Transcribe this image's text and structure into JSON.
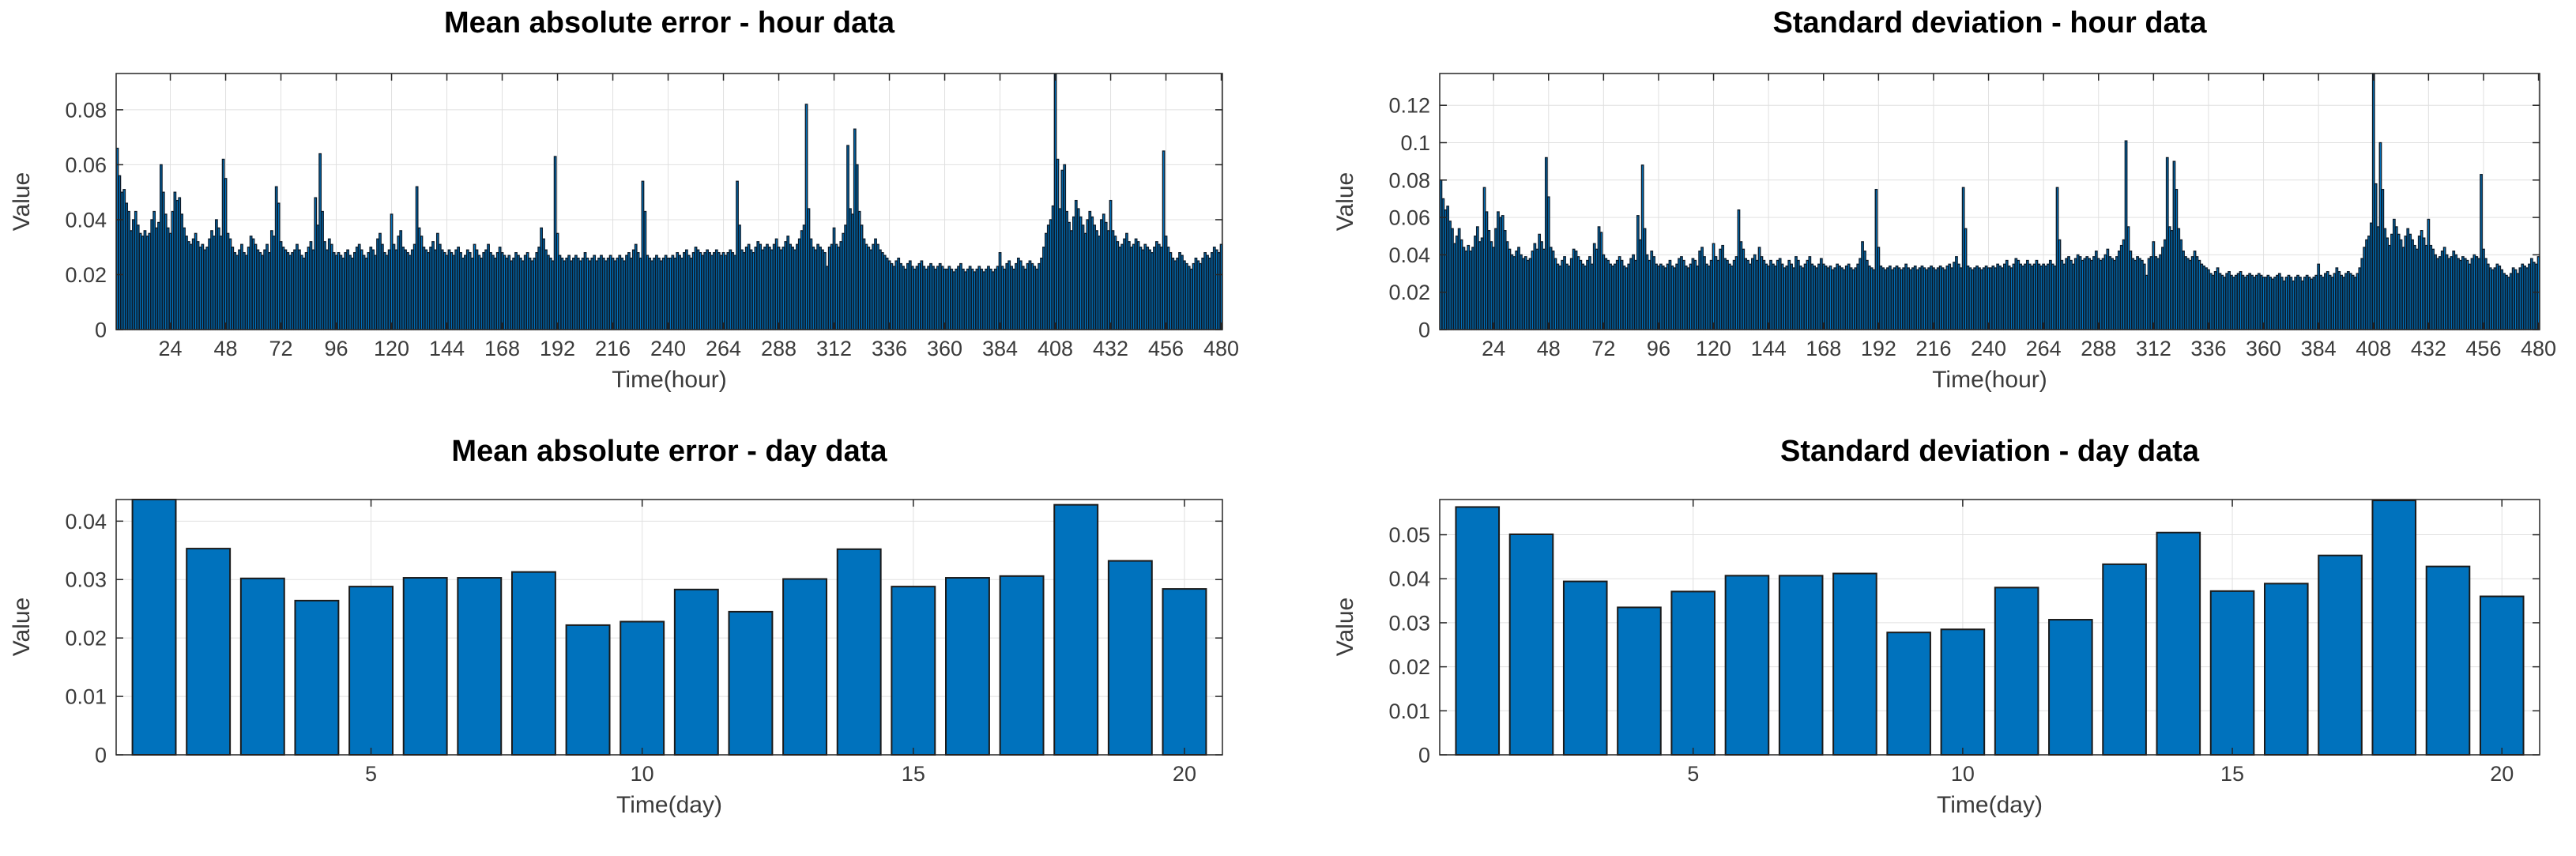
{
  "style": {
    "background": "#ffffff",
    "bar_fill": "#0072BD",
    "axis_color": "#262626",
    "grid_color": "#e0e0e0",
    "tick_color": "#3b3b3b",
    "title_color": "#000000"
  },
  "chart_data": [
    {
      "type": "bar",
      "key": "mae-hour",
      "title": "Mean absolute error - hour data",
      "xlabel": "Time(hour)",
      "ylabel": "Value",
      "grid": true,
      "legend": "none",
      "xlim": [
        0.5,
        480.5
      ],
      "ylim": [
        0,
        0.0932
      ],
      "bar_width": 0.85,
      "bar_edge": "#0d1b29",
      "edge_width": 1.3,
      "xticks": [
        24,
        48,
        72,
        96,
        120,
        144,
        168,
        192,
        216,
        240,
        264,
        288,
        312,
        336,
        360,
        384,
        408,
        432,
        456,
        480
      ],
      "xtick_labels": [
        "24",
        "48",
        "72",
        "96",
        "120",
        "144",
        "168",
        "192",
        "216",
        "240",
        "264",
        "288",
        "312",
        "336",
        "360",
        "384",
        "408",
        "432",
        "456",
        "480"
      ],
      "yticks": [
        0,
        0.02,
        0.04,
        0.06,
        0.08
      ],
      "ytick_labels": [
        "0",
        "0.02",
        "0.04",
        "0.06",
        "0.08"
      ],
      "values": [
        0.066,
        0.056,
        0.05,
        0.051,
        0.046,
        0.043,
        0.036,
        0.04,
        0.043,
        0.038,
        0.035,
        0.034,
        0.036,
        0.034,
        0.035,
        0.04,
        0.043,
        0.037,
        0.039,
        0.06,
        0.05,
        0.042,
        0.037,
        0.035,
        0.043,
        0.05,
        0.047,
        0.048,
        0.042,
        0.037,
        0.034,
        0.032,
        0.031,
        0.033,
        0.035,
        0.032,
        0.03,
        0.031,
        0.029,
        0.03,
        0.033,
        0.036,
        0.034,
        0.04,
        0.037,
        0.034,
        0.062,
        0.055,
        0.035,
        0.033,
        0.03,
        0.028,
        0.027,
        0.029,
        0.031,
        0.028,
        0.027,
        0.03,
        0.034,
        0.033,
        0.031,
        0.029,
        0.028,
        0.027,
        0.029,
        0.031,
        0.028,
        0.036,
        0.034,
        0.052,
        0.046,
        0.032,
        0.03,
        0.029,
        0.028,
        0.027,
        0.028,
        0.029,
        0.031,
        0.029,
        0.027,
        0.026,
        0.028,
        0.03,
        0.032,
        0.029,
        0.048,
        0.038,
        0.064,
        0.043,
        0.032,
        0.029,
        0.033,
        0.031,
        0.028,
        0.027,
        0.028,
        0.027,
        0.026,
        0.028,
        0.029,
        0.027,
        0.026,
        0.028,
        0.03,
        0.031,
        0.029,
        0.027,
        0.026,
        0.028,
        0.03,
        0.029,
        0.027,
        0.033,
        0.035,
        0.031,
        0.028,
        0.027,
        0.029,
        0.042,
        0.031,
        0.029,
        0.034,
        0.036,
        0.03,
        0.029,
        0.028,
        0.027,
        0.029,
        0.031,
        0.052,
        0.037,
        0.034,
        0.03,
        0.029,
        0.028,
        0.03,
        0.032,
        0.029,
        0.035,
        0.031,
        0.029,
        0.028,
        0.027,
        0.029,
        0.028,
        0.027,
        0.029,
        0.03,
        0.028,
        0.026,
        0.027,
        0.029,
        0.028,
        0.026,
        0.031,
        0.029,
        0.027,
        0.026,
        0.028,
        0.029,
        0.031,
        0.028,
        0.027,
        0.026,
        0.028,
        0.03,
        0.028,
        0.027,
        0.026,
        0.027,
        0.025,
        0.026,
        0.028,
        0.027,
        0.026,
        0.025,
        0.027,
        0.028,
        0.026,
        0.025,
        0.026,
        0.028,
        0.03,
        0.037,
        0.033,
        0.029,
        0.027,
        0.026,
        0.025,
        0.063,
        0.035,
        0.027,
        0.026,
        0.025,
        0.026,
        0.027,
        0.025,
        0.026,
        0.027,
        0.026,
        0.025,
        0.026,
        0.028,
        0.026,
        0.025,
        0.026,
        0.027,
        0.025,
        0.026,
        0.027,
        0.026,
        0.025,
        0.026,
        0.027,
        0.026,
        0.025,
        0.026,
        0.027,
        0.026,
        0.025,
        0.027,
        0.028,
        0.026,
        0.029,
        0.031,
        0.028,
        0.026,
        0.054,
        0.043,
        0.027,
        0.026,
        0.025,
        0.026,
        0.027,
        0.026,
        0.025,
        0.026,
        0.027,
        0.026,
        0.026,
        0.027,
        0.026,
        0.028,
        0.027,
        0.026,
        0.028,
        0.029,
        0.027,
        0.026,
        0.028,
        0.03,
        0.029,
        0.028,
        0.027,
        0.028,
        0.029,
        0.028,
        0.027,
        0.028,
        0.029,
        0.028,
        0.027,
        0.028,
        0.027,
        0.028,
        0.029,
        0.028,
        0.027,
        0.054,
        0.038,
        0.029,
        0.028,
        0.03,
        0.031,
        0.029,
        0.028,
        0.03,
        0.032,
        0.031,
        0.029,
        0.03,
        0.031,
        0.03,
        0.029,
        0.031,
        0.033,
        0.03,
        0.029,
        0.03,
        0.032,
        0.034,
        0.031,
        0.03,
        0.029,
        0.031,
        0.033,
        0.036,
        0.038,
        0.082,
        0.044,
        0.033,
        0.03,
        0.029,
        0.031,
        0.03,
        0.029,
        0.028,
        0.023,
        0.03,
        0.031,
        0.037,
        0.031,
        0.03,
        0.032,
        0.035,
        0.038,
        0.067,
        0.044,
        0.042,
        0.073,
        0.06,
        0.043,
        0.038,
        0.033,
        0.031,
        0.03,
        0.029,
        0.031,
        0.033,
        0.031,
        0.029,
        0.028,
        0.027,
        0.026,
        0.025,
        0.024,
        0.023,
        0.025,
        0.026,
        0.024,
        0.023,
        0.022,
        0.024,
        0.025,
        0.023,
        0.022,
        0.023,
        0.024,
        0.025,
        0.023,
        0.022,
        0.023,
        0.024,
        0.023,
        0.022,
        0.023,
        0.024,
        0.023,
        0.022,
        0.022,
        0.023,
        0.022,
        0.021,
        0.022,
        0.023,
        0.024,
        0.022,
        0.021,
        0.022,
        0.023,
        0.022,
        0.021,
        0.022,
        0.023,
        0.022,
        0.021,
        0.022,
        0.023,
        0.022,
        0.021,
        0.022,
        0.023,
        0.028,
        0.023,
        0.022,
        0.024,
        0.025,
        0.023,
        0.022,
        0.024,
        0.026,
        0.025,
        0.023,
        0.022,
        0.024,
        0.025,
        0.024,
        0.023,
        0.022,
        0.024,
        0.026,
        0.03,
        0.035,
        0.038,
        0.04,
        0.045,
        0.093,
        0.062,
        0.044,
        0.058,
        0.06,
        0.043,
        0.039,
        0.036,
        0.041,
        0.047,
        0.044,
        0.041,
        0.038,
        0.035,
        0.04,
        0.043,
        0.041,
        0.038,
        0.036,
        0.034,
        0.04,
        0.042,
        0.039,
        0.036,
        0.047,
        0.036,
        0.034,
        0.032,
        0.03,
        0.031,
        0.033,
        0.035,
        0.032,
        0.03,
        0.031,
        0.033,
        0.032,
        0.03,
        0.029,
        0.031,
        0.03,
        0.029,
        0.028,
        0.03,
        0.032,
        0.031,
        0.03,
        0.065,
        0.034,
        0.03,
        0.028,
        0.026,
        0.025,
        0.026,
        0.028,
        0.027,
        0.025,
        0.024,
        0.023,
        0.022,
        0.024,
        0.026,
        0.025,
        0.024,
        0.026,
        0.028,
        0.027,
        0.026,
        0.028,
        0.03,
        0.029,
        0.028,
        0.031
      ]
    },
    {
      "type": "bar",
      "key": "std-hour",
      "title": "Standard deviation - hour data",
      "xlabel": "Time(hour)",
      "ylabel": "Value",
      "grid": true,
      "legend": "none",
      "xlim": [
        0.5,
        480.5
      ],
      "ylim": [
        0,
        0.137
      ],
      "bar_width": 0.85,
      "bar_edge": "#0d1b29",
      "edge_width": 1.3,
      "xticks": [
        24,
        48,
        72,
        96,
        120,
        144,
        168,
        192,
        216,
        240,
        264,
        288,
        312,
        336,
        360,
        384,
        408,
        432,
        456,
        480
      ],
      "xtick_labels": [
        "24",
        "48",
        "72",
        "96",
        "120",
        "144",
        "168",
        "192",
        "216",
        "240",
        "264",
        "288",
        "312",
        "336",
        "360",
        "384",
        "408",
        "432",
        "456",
        "480"
      ],
      "yticks": [
        0,
        0.02,
        0.04,
        0.06,
        0.08,
        0.1,
        0.12
      ],
      "ytick_labels": [
        "0",
        "0.02",
        "0.04",
        "0.06",
        "0.08",
        "0.1",
        "0.12"
      ],
      "values": [
        0.08,
        0.07,
        0.064,
        0.066,
        0.058,
        0.054,
        0.046,
        0.05,
        0.054,
        0.048,
        0.044,
        0.042,
        0.045,
        0.042,
        0.044,
        0.05,
        0.055,
        0.047,
        0.049,
        0.076,
        0.063,
        0.053,
        0.047,
        0.044,
        0.054,
        0.063,
        0.06,
        0.061,
        0.053,
        0.047,
        0.043,
        0.04,
        0.039,
        0.042,
        0.044,
        0.04,
        0.038,
        0.039,
        0.037,
        0.038,
        0.042,
        0.046,
        0.043,
        0.051,
        0.047,
        0.043,
        0.092,
        0.071,
        0.044,
        0.042,
        0.038,
        0.035,
        0.034,
        0.037,
        0.039,
        0.035,
        0.034,
        0.038,
        0.043,
        0.042,
        0.039,
        0.037,
        0.035,
        0.034,
        0.037,
        0.039,
        0.035,
        0.046,
        0.043,
        0.055,
        0.052,
        0.04,
        0.038,
        0.037,
        0.035,
        0.034,
        0.035,
        0.037,
        0.039,
        0.037,
        0.034,
        0.033,
        0.035,
        0.038,
        0.04,
        0.037,
        0.061,
        0.048,
        0.088,
        0.054,
        0.04,
        0.037,
        0.042,
        0.039,
        0.035,
        0.034,
        0.035,
        0.034,
        0.033,
        0.035,
        0.037,
        0.034,
        0.033,
        0.035,
        0.038,
        0.039,
        0.037,
        0.034,
        0.033,
        0.035,
        0.038,
        0.037,
        0.034,
        0.042,
        0.044,
        0.039,
        0.035,
        0.034,
        0.037,
        0.046,
        0.039,
        0.037,
        0.043,
        0.045,
        0.038,
        0.037,
        0.035,
        0.034,
        0.037,
        0.039,
        0.064,
        0.047,
        0.043,
        0.038,
        0.037,
        0.035,
        0.038,
        0.04,
        0.037,
        0.044,
        0.039,
        0.037,
        0.035,
        0.034,
        0.037,
        0.035,
        0.034,
        0.037,
        0.038,
        0.035,
        0.033,
        0.034,
        0.037,
        0.035,
        0.033,
        0.039,
        0.037,
        0.034,
        0.033,
        0.035,
        0.037,
        0.039,
        0.035,
        0.034,
        0.033,
        0.035,
        0.038,
        0.035,
        0.034,
        0.033,
        0.034,
        0.032,
        0.033,
        0.035,
        0.034,
        0.033,
        0.032,
        0.034,
        0.035,
        0.033,
        0.032,
        0.033,
        0.035,
        0.038,
        0.047,
        0.042,
        0.037,
        0.034,
        0.033,
        0.032,
        0.075,
        0.044,
        0.034,
        0.033,
        0.032,
        0.033,
        0.034,
        0.032,
        0.033,
        0.034,
        0.033,
        0.032,
        0.033,
        0.035,
        0.033,
        0.032,
        0.033,
        0.034,
        0.032,
        0.033,
        0.034,
        0.033,
        0.032,
        0.033,
        0.034,
        0.033,
        0.032,
        0.033,
        0.034,
        0.033,
        0.032,
        0.034,
        0.035,
        0.033,
        0.036,
        0.039,
        0.035,
        0.033,
        0.076,
        0.054,
        0.034,
        0.033,
        0.032,
        0.033,
        0.034,
        0.033,
        0.032,
        0.033,
        0.034,
        0.033,
        0.033,
        0.034,
        0.033,
        0.035,
        0.034,
        0.033,
        0.035,
        0.037,
        0.034,
        0.033,
        0.035,
        0.038,
        0.037,
        0.035,
        0.034,
        0.035,
        0.037,
        0.035,
        0.034,
        0.035,
        0.037,
        0.035,
        0.034,
        0.035,
        0.034,
        0.035,
        0.037,
        0.035,
        0.034,
        0.076,
        0.048,
        0.037,
        0.035,
        0.038,
        0.039,
        0.037,
        0.035,
        0.038,
        0.04,
        0.039,
        0.037,
        0.038,
        0.039,
        0.038,
        0.037,
        0.039,
        0.042,
        0.038,
        0.037,
        0.038,
        0.04,
        0.043,
        0.039,
        0.038,
        0.037,
        0.039,
        0.042,
        0.045,
        0.048,
        0.101,
        0.055,
        0.042,
        0.038,
        0.037,
        0.039,
        0.038,
        0.037,
        0.035,
        0.029,
        0.038,
        0.039,
        0.047,
        0.039,
        0.038,
        0.04,
        0.044,
        0.048,
        0.092,
        0.055,
        0.053,
        0.09,
        0.075,
        0.054,
        0.048,
        0.042,
        0.039,
        0.038,
        0.037,
        0.039,
        0.042,
        0.039,
        0.037,
        0.035,
        0.034,
        0.033,
        0.032,
        0.03,
        0.029,
        0.031,
        0.033,
        0.03,
        0.029,
        0.028,
        0.03,
        0.031,
        0.029,
        0.028,
        0.029,
        0.03,
        0.031,
        0.029,
        0.028,
        0.029,
        0.03,
        0.029,
        0.028,
        0.029,
        0.03,
        0.029,
        0.028,
        0.028,
        0.029,
        0.028,
        0.027,
        0.028,
        0.029,
        0.03,
        0.028,
        0.026,
        0.028,
        0.029,
        0.028,
        0.026,
        0.028,
        0.029,
        0.028,
        0.026,
        0.028,
        0.029,
        0.028,
        0.027,
        0.028,
        0.029,
        0.035,
        0.029,
        0.028,
        0.03,
        0.031,
        0.029,
        0.028,
        0.03,
        0.033,
        0.031,
        0.029,
        0.028,
        0.03,
        0.031,
        0.03,
        0.029,
        0.028,
        0.03,
        0.033,
        0.038,
        0.044,
        0.048,
        0.05,
        0.057,
        0.137,
        0.078,
        0.055,
        0.1,
        0.075,
        0.054,
        0.049,
        0.045,
        0.051,
        0.059,
        0.055,
        0.051,
        0.048,
        0.044,
        0.05,
        0.054,
        0.051,
        0.048,
        0.045,
        0.043,
        0.05,
        0.053,
        0.049,
        0.045,
        0.059,
        0.045,
        0.043,
        0.04,
        0.038,
        0.039,
        0.042,
        0.044,
        0.04,
        0.038,
        0.039,
        0.042,
        0.04,
        0.038,
        0.037,
        0.039,
        0.038,
        0.037,
        0.035,
        0.038,
        0.04,
        0.039,
        0.038,
        0.083,
        0.043,
        0.038,
        0.035,
        0.033,
        0.032,
        0.033,
        0.035,
        0.034,
        0.032,
        0.03,
        0.029,
        0.028,
        0.03,
        0.033,
        0.032,
        0.03,
        0.033,
        0.035,
        0.034,
        0.033,
        0.035,
        0.038,
        0.036,
        0.035,
        0.039
      ]
    },
    {
      "type": "bar",
      "key": "mae-day",
      "title": "Mean absolute error - day data",
      "xlabel": "Time(day)",
      "ylabel": "Value",
      "grid": true,
      "legend": "none",
      "xlim": [
        0.3,
        20.7
      ],
      "ylim": [
        0,
        0.0437
      ],
      "bar_width": 0.8,
      "bar_edge": "#1a1a1a",
      "edge_width": 2,
      "xticks": [
        5,
        10,
        15,
        20
      ],
      "xtick_labels": [
        "5",
        "10",
        "15",
        "20"
      ],
      "yticks": [
        0,
        0.01,
        0.02,
        0.03,
        0.04
      ],
      "ytick_labels": [
        "0",
        "0.01",
        "0.02",
        "0.03",
        "0.04"
      ],
      "values": [
        0.0437,
        0.0353,
        0.0302,
        0.0264,
        0.0288,
        0.0303,
        0.0303,
        0.0313,
        0.0222,
        0.0228,
        0.0283,
        0.0245,
        0.0301,
        0.0352,
        0.0288,
        0.0303,
        0.0306,
        0.0428,
        0.0332,
        0.0284
      ]
    },
    {
      "type": "bar",
      "key": "std-day",
      "title": "Standard deviation - day data",
      "xlabel": "Time(day)",
      "ylabel": "Value",
      "grid": true,
      "legend": "none",
      "xlim": [
        0.3,
        20.7
      ],
      "ylim": [
        0,
        0.058
      ],
      "bar_width": 0.8,
      "bar_edge": "#1a1a1a",
      "edge_width": 2,
      "xticks": [
        5,
        10,
        15,
        20
      ],
      "xtick_labels": [
        "5",
        "10",
        "15",
        "20"
      ],
      "yticks": [
        0,
        0.01,
        0.02,
        0.03,
        0.04,
        0.05
      ],
      "ytick_labels": [
        "0",
        "0.01",
        "0.02",
        "0.03",
        "0.04",
        "0.05"
      ],
      "values": [
        0.0563,
        0.0501,
        0.0394,
        0.0335,
        0.0371,
        0.0407,
        0.0407,
        0.0412,
        0.0278,
        0.0285,
        0.038,
        0.0307,
        0.0433,
        0.0505,
        0.0372,
        0.0389,
        0.0453,
        0.0578,
        0.0428,
        0.036
      ]
    }
  ]
}
